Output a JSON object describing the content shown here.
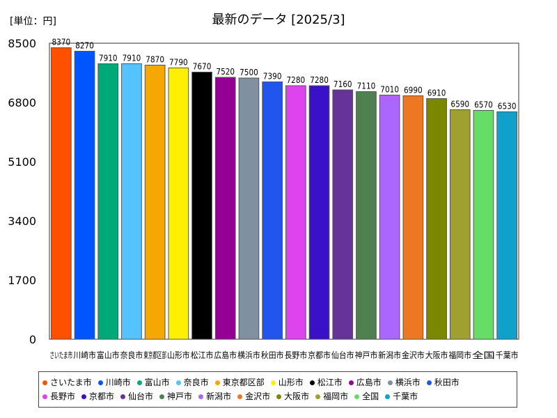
{
  "chart_data": {
    "type": "bar",
    "title": "最新のデータ [2025/3]",
    "unit_label": "[単位：円]",
    "categories": [
      "さいたま市",
      "川崎市",
      "富山市",
      "奈良市",
      "東京都区部",
      "山形市",
      "松江市",
      "広島市",
      "横浜市",
      "秋田市",
      "長野市",
      "京都市",
      "仙台市",
      "神戸市",
      "新潟市",
      "金沢市",
      "大阪市",
      "福岡市",
      "全国",
      "千葉市"
    ],
    "x_tick_labels": [
      "さいたま市",
      "川崎市",
      "富山市",
      "奈良市",
      "東京都区部",
      "山形市",
      "松江市",
      "広島市",
      "横浜市",
      "秋田市",
      "長野市",
      "京都市",
      "仙台市",
      "神戸市",
      "新潟市",
      "金沢市",
      "大阪市",
      "福岡市",
      "全国",
      "千葉市"
    ],
    "values": [
      8370,
      8270,
      7910,
      7910,
      7870,
      7790,
      7670,
      7520,
      7500,
      7390,
      7280,
      7280,
      7160,
      7110,
      7010,
      6990,
      6910,
      6590,
      6570,
      6530
    ],
    "value_labels": [
      "8370",
      "8270",
      "7910",
      "7910",
      "7870",
      "7790",
      "7670",
      "7520",
      "7500",
      "7390",
      "7280",
      "7280",
      "7160",
      "7110",
      "7010",
      "6990",
      "6910",
      "6590",
      "6570",
      "6530"
    ],
    "colors": [
      "#ff5000",
      "#0055ff",
      "#00aa78",
      "#55c3ff",
      "#f5a800",
      "#fff000",
      "#000000",
      "#940094",
      "#8090a0",
      "#2255ee",
      "#dd44ee",
      "#3a10c8",
      "#663399",
      "#4e8050",
      "#aa66ff",
      "#ee7722",
      "#7a8800",
      "#a0a030",
      "#66dd66",
      "#10a0cc"
    ],
    "yticks": [
      0,
      1700,
      3400,
      5100,
      6800,
      8500
    ],
    "ytick_labels": [
      "0",
      "1700",
      "3400",
      "5100",
      "6800",
      "8500"
    ],
    "ylim": [
      0,
      8500
    ],
    "xlabel": "",
    "ylabel": "",
    "legend": {
      "position": "bottom",
      "rows": [
        [
          "さいたま市",
          "川崎市",
          "富山市",
          "奈良市",
          "東京都区部",
          "山形市",
          "松江市",
          "広島市",
          "横浜市",
          "秋田市"
        ],
        [
          "長野市",
          "京都市",
          "仙台市",
          "神戸市",
          "新潟市",
          "金沢市",
          "大阪市",
          "福岡市",
          "全国",
          "千葉市"
        ]
      ]
    }
  }
}
